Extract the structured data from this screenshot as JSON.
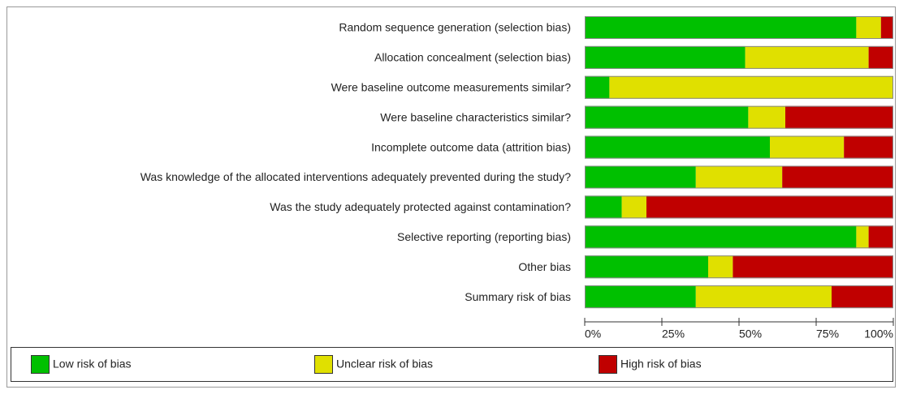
{
  "chart_data": {
    "type": "stacked-bar-horizontal",
    "categories": [
      "Random sequence generation (selection bias)",
      "Allocation concealment (selection bias)",
      "Were baseline outcome measurements similar?",
      "Were baseline characteristics similar?",
      "Incomplete outcome data (attrition bias)",
      "Was knowledge of the allocated interventions adequately prevented during the study?",
      "Was the study adequately protected against contamination?",
      "Selective reporting (reporting bias)",
      "Other bias",
      "Summary risk of bias"
    ],
    "series": [
      {
        "name": "Low risk of bias",
        "color": "#00c000",
        "values": [
          88,
          52,
          8,
          53,
          60,
          36,
          12,
          88,
          40,
          36
        ]
      },
      {
        "name": "Unclear risk of bias",
        "color": "#e0e000",
        "values": [
          8,
          40,
          92,
          12,
          24,
          28,
          8,
          4,
          8,
          44
        ]
      },
      {
        "name": "High risk of bias",
        "color": "#c00000",
        "values": [
          4,
          8,
          0,
          35,
          16,
          36,
          80,
          8,
          52,
          20
        ]
      }
    ],
    "xlim": [
      0,
      100
    ],
    "xticks": [
      {
        "value": 0,
        "label": "0%"
      },
      {
        "value": 25,
        "label": "25%"
      },
      {
        "value": 50,
        "label": "50%"
      },
      {
        "value": 75,
        "label": "75%"
      },
      {
        "value": 100,
        "label": "100%"
      }
    ]
  }
}
